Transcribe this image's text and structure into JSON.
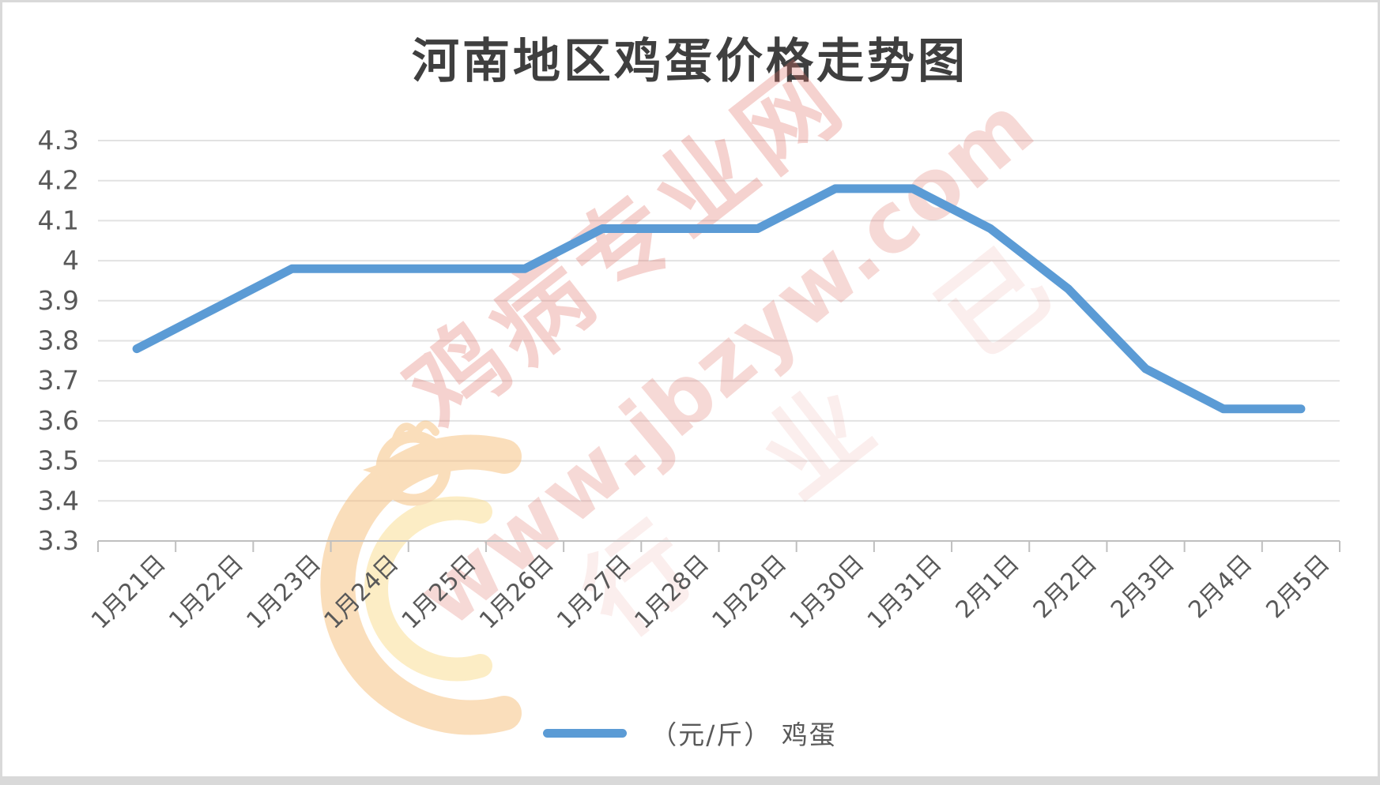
{
  "title": "河南地区鸡蛋价格走势图",
  "legend": {
    "label": "（元/斤） 鸡蛋"
  },
  "watermark": {
    "site_name": "鸡病专业网",
    "site_url": "www.jbzyw.com",
    "faint_text": "行 业 已"
  },
  "colors": {
    "series_line": "#5B9BD5",
    "gridline": "#E2E2E2",
    "axis_line": "#BFBFBF",
    "tick_label": "#595959",
    "title_text": "#3F3F3F",
    "watermark_pink": "#E06E64",
    "watermark_orange": "#F6BE79",
    "watermark_yellow": "#FBDC8C"
  },
  "chart_data": {
    "type": "line",
    "title": "河南地区鸡蛋价格走势图",
    "categories": [
      "1月21日",
      "1月22日",
      "1月23日",
      "1月24日",
      "1月25日",
      "1月26日",
      "1月27日",
      "1月28日",
      "1月29日",
      "1月30日",
      "1月31日",
      "2月1日",
      "2月2日",
      "2月3日",
      "2月4日",
      "2月5日"
    ],
    "series": [
      {
        "name": "（元/斤） 鸡蛋",
        "values": [
          3.78,
          3.88,
          3.98,
          3.98,
          3.98,
          3.98,
          4.08,
          4.08,
          4.08,
          4.18,
          4.18,
          4.08,
          3.93,
          3.73,
          3.63,
          3.63
        ]
      }
    ],
    "ylim": [
      3.3,
      4.3
    ],
    "ytick_labels": [
      "3.3",
      "3.4",
      "3.5",
      "3.6",
      "3.7",
      "3.8",
      "3.9",
      "4",
      "4.1",
      "4.2",
      "4.3"
    ],
    "xlabel": "",
    "ylabel": "",
    "grid": "horizontal-only",
    "legend_position": "bottom"
  }
}
